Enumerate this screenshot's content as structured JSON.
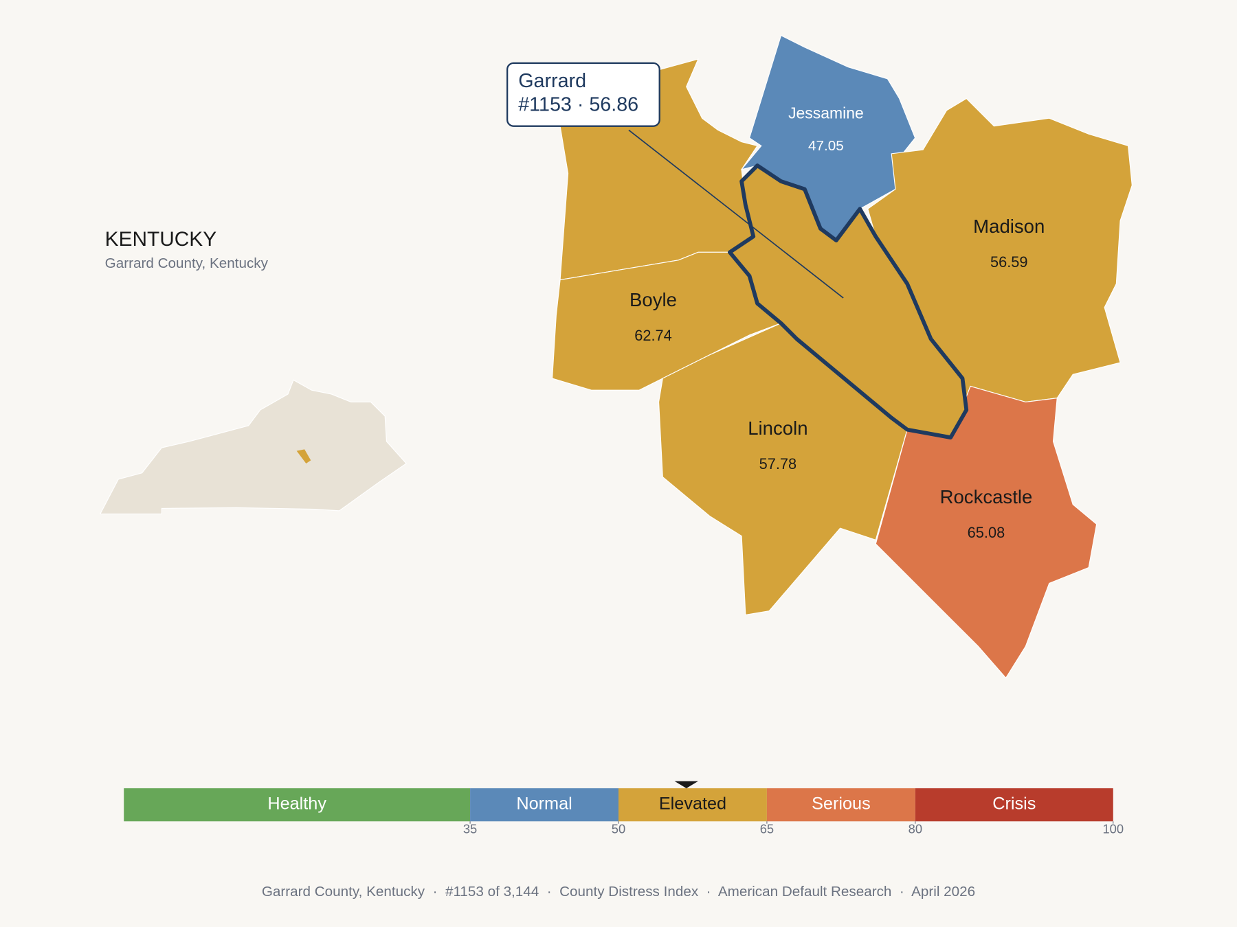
{
  "header": {
    "title": "KENTUCKY",
    "subtitle": "Garrard County, Kentucky"
  },
  "callout": {
    "name": "Garrard",
    "label": "#1153 · 56.86"
  },
  "counties": [
    {
      "name": "Jessamine",
      "value": 47.05
    },
    {
      "name": "Madison",
      "value": 56.59
    },
    {
      "name": "Boyle",
      "value": 62.74
    },
    {
      "name": "Lincoln",
      "value": 57.78
    },
    {
      "name": "Rockcastle",
      "value": 65.08
    }
  ],
  "scale": {
    "range": [
      0,
      100
    ],
    "marker": 56.86,
    "bands": [
      {
        "label": "Healthy",
        "color": "#67a758"
      },
      {
        "label": "Normal",
        "color": "#5b89b8"
      },
      {
        "label": "Elevated",
        "color": "#d4a33a"
      },
      {
        "label": "Serious",
        "color": "#dc7649"
      },
      {
        "label": "Crisis",
        "color": "#b83c2c"
      }
    ],
    "ticks": [
      35,
      50,
      65,
      80,
      100
    ]
  },
  "footer": "Garrard County, Kentucky  ·  #1153 of 3,144  ·  County Distress Index  ·  American Default Research  ·  April 2026"
}
